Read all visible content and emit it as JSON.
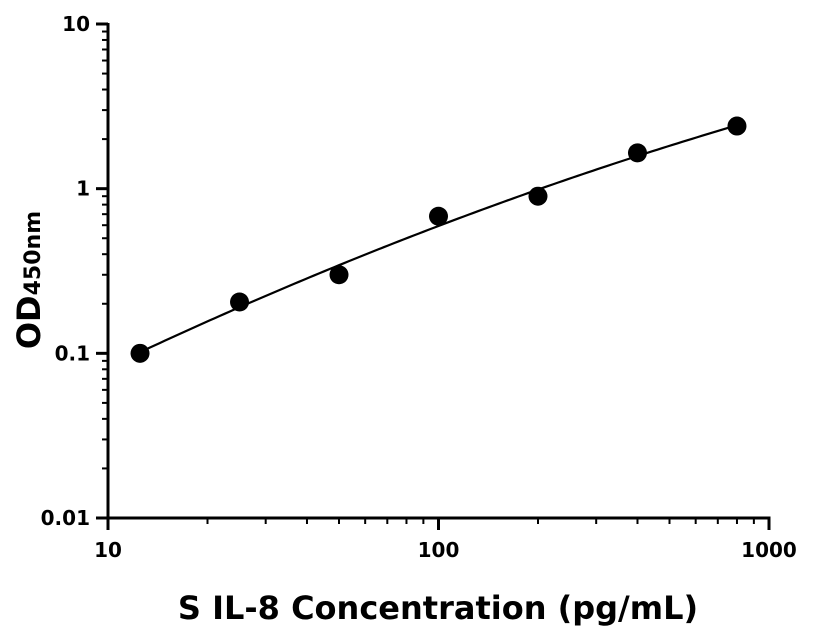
{
  "chart_data": {
    "type": "scatter",
    "xlabel": "S IL-8 Concentration (pg/mL)",
    "ylabel_main": "OD",
    "ylabel_sub": "450nm",
    "xscale": "log",
    "yscale": "log",
    "xlim": [
      10,
      1000
    ],
    "ylim": [
      0.01,
      10
    ],
    "xticks": [
      10,
      100,
      1000
    ],
    "xtick_labels": [
      "10",
      "100",
      "1000"
    ],
    "yticks": [
      10,
      1,
      0.1,
      0.01
    ],
    "ytick_labels": [
      "10",
      "1",
      "0.1",
      "0.01"
    ],
    "grid": false,
    "series": [
      {
        "x": [
          12.5,
          25,
          50,
          100,
          200,
          400,
          800
        ],
        "y": [
          0.1,
          0.205,
          0.3,
          0.68,
          0.9,
          1.65,
          2.4
        ],
        "marker_color": "#000000",
        "fit_curve": true
      }
    ]
  }
}
